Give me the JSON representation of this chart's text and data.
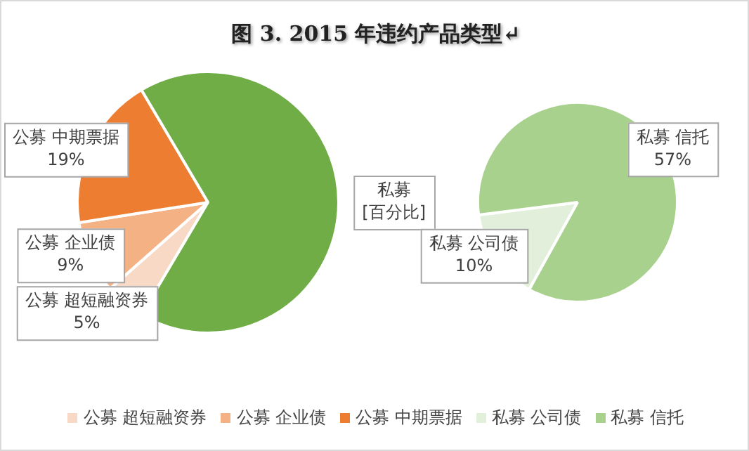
{
  "chart_data": [
    {
      "type": "pie",
      "title": "图 3. 2015 年违约产品类型↵",
      "categories": [
        "公募 超短融资券",
        "公募 企业债",
        "公募 中期票据",
        null
      ],
      "values": [
        5,
        9,
        19,
        67
      ],
      "colors": [
        "#f8d9c6",
        "#f4b183",
        "#ed7d31",
        "#70ad47"
      ],
      "value_labels": [
        "5%",
        "9%",
        "19%",
        null
      ],
      "annotations": [
        "私募 [百分比]"
      ],
      "legend": "bottom"
    },
    {
      "type": "pie",
      "categories": [
        "私募 公司债",
        "私募 信托"
      ],
      "values": [
        10,
        57
      ],
      "colors": [
        "#e2efda",
        "#a9d18e"
      ],
      "value_labels": [
        "10%",
        "57%"
      ],
      "legend": "bottom"
    }
  ]
}
